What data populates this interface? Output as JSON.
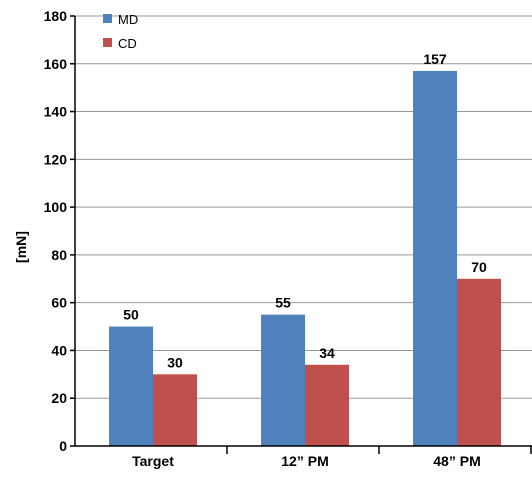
{
  "chart_data": {
    "type": "bar",
    "categories": [
      "Target",
      "12” PM",
      "48” PM"
    ],
    "series": [
      {
        "name": "MD",
        "values": [
          50,
          55,
          157
        ],
        "color": "#4f81bd"
      },
      {
        "name": "CD",
        "values": [
          30,
          34,
          70
        ],
        "color": "#c0504d"
      }
    ],
    "ylabel": "[mN]",
    "ylim": [
      0,
      180
    ],
    "yticks": [
      0,
      20,
      40,
      60,
      80,
      100,
      120,
      140,
      160,
      180
    ],
    "grid": true,
    "legend": "top-left"
  }
}
